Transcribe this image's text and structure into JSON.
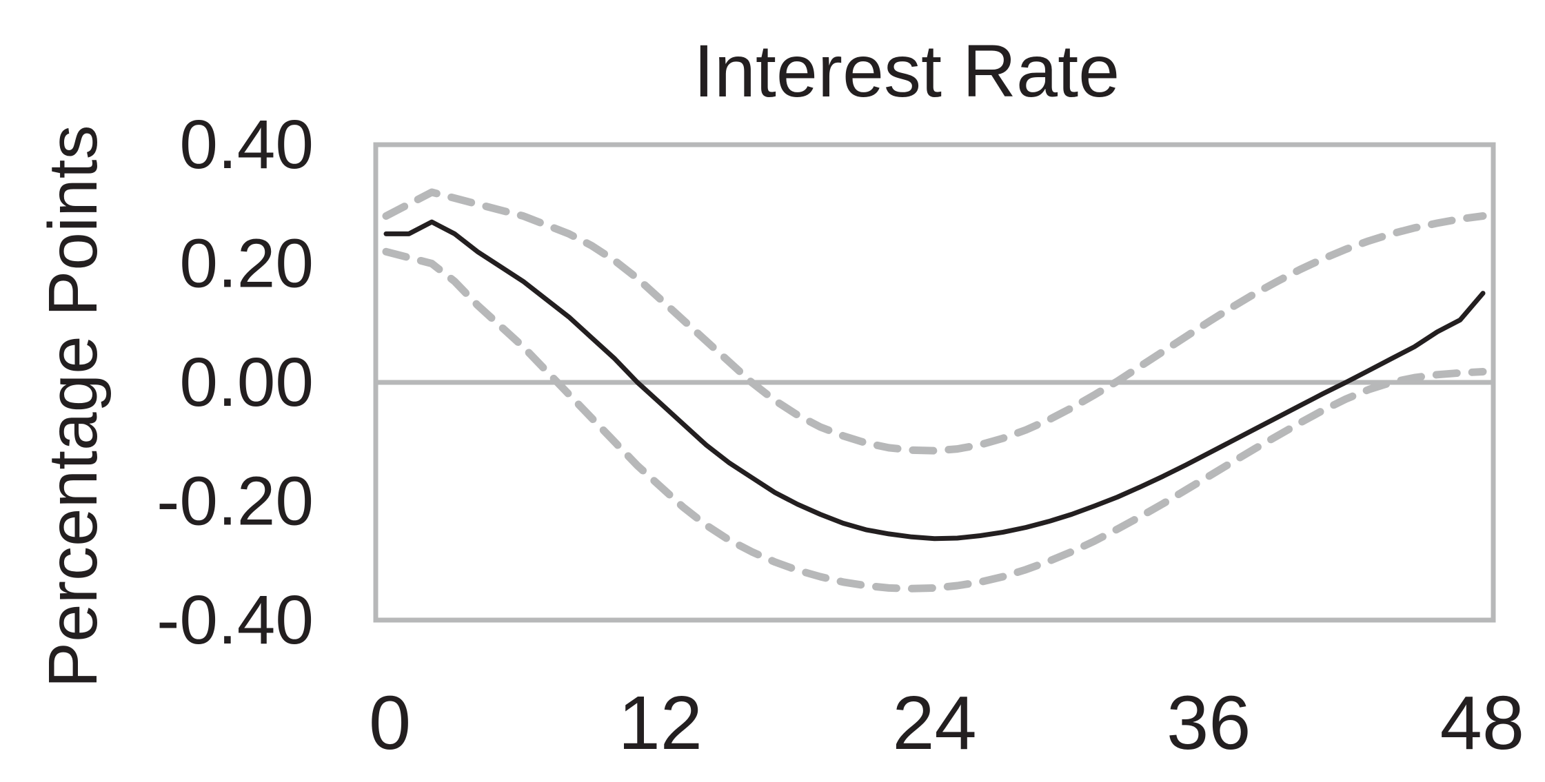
{
  "chart_data": {
    "type": "line",
    "title": "Interest Rate",
    "xlabel": "",
    "ylabel": "Percentage Points",
    "x_ticks": [
      0,
      12,
      24,
      36,
      48
    ],
    "x_tick_labels": [
      "0",
      "12",
      "24",
      "36",
      "48"
    ],
    "y_ticks": [
      0.4,
      0.2,
      0.0,
      -0.2,
      -0.4
    ],
    "y_tick_labels": [
      "0.40",
      "0.20",
      "0.00",
      "-0.20",
      "-0.40"
    ],
    "xlim": [
      0,
      48
    ],
    "ylim": [
      -0.4,
      0.4
    ],
    "zero_line": true,
    "grid": false,
    "legend": "none",
    "series": [
      {
        "style": "solid",
        "color": "#231f20",
        "x": [
          0,
          1,
          2,
          3,
          4,
          5,
          6,
          7,
          8,
          9,
          10,
          11,
          12,
          13,
          14,
          15,
          16,
          17,
          18,
          19,
          20,
          21,
          22,
          23,
          24,
          25,
          26,
          27,
          28,
          29,
          30,
          31,
          32,
          33,
          34,
          35,
          36,
          37,
          38,
          39,
          40,
          41,
          42,
          43,
          44,
          45,
          46,
          47,
          48
        ],
        "y": [
          0.25,
          0.25,
          0.27,
          0.25,
          0.22,
          0.195,
          0.17,
          0.14,
          0.11,
          0.075,
          0.04,
          0.0,
          -0.035,
          -0.07,
          -0.105,
          -0.135,
          -0.16,
          -0.185,
          -0.205,
          -0.222,
          -0.237,
          -0.248,
          -0.255,
          -0.26,
          -0.263,
          -0.262,
          -0.258,
          -0.252,
          -0.244,
          -0.234,
          -0.222,
          -0.208,
          -0.193,
          -0.176,
          -0.158,
          -0.139,
          -0.119,
          -0.099,
          -0.079,
          -0.059,
          -0.039,
          -0.019,
          0.0,
          0.02,
          0.04,
          0.06,
          0.085,
          0.105,
          0.15
        ]
      },
      {
        "style": "dashed",
        "color": "#b7b8b9",
        "x": [
          0,
          1,
          2,
          3,
          4,
          5,
          6,
          7,
          8,
          9,
          10,
          11,
          12,
          13,
          14,
          15,
          16,
          17,
          18,
          19,
          20,
          21,
          22,
          23,
          24,
          25,
          26,
          27,
          28,
          29,
          30,
          31,
          32,
          33,
          34,
          35,
          36,
          37,
          38,
          39,
          40,
          41,
          42,
          43,
          44,
          45,
          46,
          47,
          48
        ],
        "y": [
          0.28,
          0.3,
          0.32,
          0.31,
          0.3,
          0.29,
          0.28,
          0.265,
          0.25,
          0.23,
          0.205,
          0.175,
          0.14,
          0.105,
          0.07,
          0.035,
          0.0,
          -0.03,
          -0.055,
          -0.075,
          -0.09,
          -0.102,
          -0.11,
          -0.114,
          -0.115,
          -0.112,
          -0.105,
          -0.094,
          -0.08,
          -0.063,
          -0.043,
          -0.021,
          0.002,
          0.027,
          0.052,
          0.077,
          0.102,
          0.126,
          0.149,
          0.17,
          0.19,
          0.208,
          0.224,
          0.238,
          0.25,
          0.26,
          0.268,
          0.275,
          0.28
        ]
      },
      {
        "style": "dashed",
        "color": "#b7b8b9",
        "x": [
          0,
          1,
          2,
          3,
          4,
          5,
          6,
          7,
          8,
          9,
          10,
          11,
          12,
          13,
          14,
          15,
          16,
          17,
          18,
          19,
          20,
          21,
          22,
          23,
          24,
          25,
          26,
          27,
          28,
          29,
          30,
          31,
          32,
          33,
          34,
          35,
          36,
          37,
          38,
          39,
          40,
          41,
          42,
          43,
          44,
          45,
          46,
          47,
          48
        ],
        "y": [
          0.22,
          0.21,
          0.2,
          0.17,
          0.13,
          0.095,
          0.06,
          0.02,
          -0.02,
          -0.06,
          -0.1,
          -0.14,
          -0.175,
          -0.21,
          -0.24,
          -0.265,
          -0.285,
          -0.302,
          -0.316,
          -0.327,
          -0.336,
          -0.342,
          -0.346,
          -0.347,
          -0.346,
          -0.342,
          -0.336,
          -0.327,
          -0.315,
          -0.301,
          -0.285,
          -0.267,
          -0.247,
          -0.226,
          -0.204,
          -0.181,
          -0.158,
          -0.135,
          -0.112,
          -0.09,
          -0.068,
          -0.047,
          -0.028,
          -0.012,
          0.0,
          0.008,
          0.013,
          0.016,
          0.018
        ]
      }
    ],
    "colors": {
      "frame": "#b7b8b9",
      "text": "#231f20"
    }
  }
}
